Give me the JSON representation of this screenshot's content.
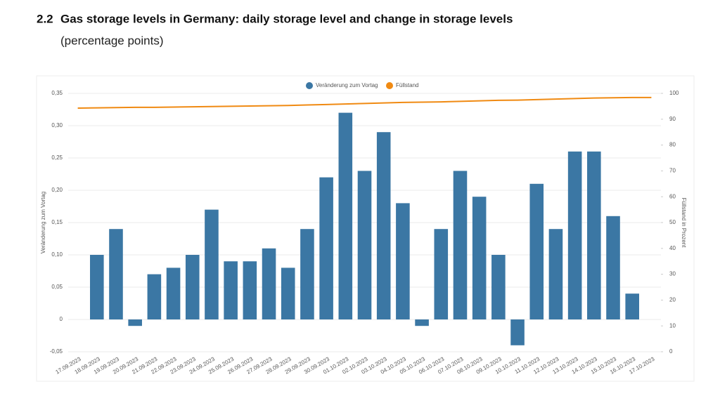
{
  "chart_data": {
    "type": "bar",
    "section": "2.2",
    "title": "Gas storage levels in Germany: daily storage level and change in storage levels",
    "subtitle": "(percentage points)",
    "ylabel": "Veränderung zum Vortag",
    "y2label": "Füllstand in Prozent",
    "categories": [
      "17.09.2023",
      "18.09.2023",
      "19.09.2023",
      "20.09.2023",
      "21.09.2023",
      "22.09.2023",
      "23.09.2023",
      "24.09.2023",
      "25.09.2023",
      "26.09.2023",
      "27.09.2023",
      "28.09.2023",
      "29.09.2023",
      "30.09.2023",
      "01.10.2023",
      "02.10.2023",
      "03.10.2023",
      "04.10.2023",
      "05.10.2023",
      "06.10.2023",
      "07.10.2023",
      "08.10.2023",
      "09.10.2023",
      "10.10.2023",
      "11.10.2023",
      "12.10.2023",
      "13.10.2023",
      "14.10.2023",
      "15.10.2023",
      "16.10.2023",
      "17.10.2023"
    ],
    "series": [
      {
        "name": "Veränderung zum Vortag",
        "type": "bar",
        "color": "#3b77a4",
        "values": [
          null,
          0.1,
          0.14,
          -0.01,
          0.07,
          0.08,
          0.1,
          0.17,
          0.09,
          0.09,
          0.11,
          0.08,
          0.14,
          0.22,
          0.32,
          0.23,
          0.29,
          0.18,
          -0.01,
          0.14,
          0.23,
          0.19,
          0.1,
          -0.04,
          0.21,
          0.14,
          0.26,
          0.26,
          0.16,
          0.04,
          null
        ]
      },
      {
        "name": "Füllstand",
        "type": "line",
        "axis": "y2",
        "color": "#f08a12",
        "values": [
          94.3,
          94.4,
          94.5,
          94.6,
          94.6,
          94.7,
          94.8,
          94.9,
          95.0,
          95.1,
          95.2,
          95.3,
          95.5,
          95.7,
          95.9,
          96.1,
          96.3,
          96.5,
          96.6,
          96.7,
          96.9,
          97.1,
          97.3,
          97.4,
          97.6,
          97.8,
          98.0,
          98.2,
          98.3,
          98.4,
          98.4
        ]
      }
    ],
    "ylim": [
      -0.05,
      0.35
    ],
    "yticks": [
      {
        "value": -0.05,
        "label": "-0,05"
      },
      0,
      {
        "value": 0.05,
        "label": "0,05"
      },
      {
        "value": 0.1,
        "label": "0,10"
      },
      {
        "value": 0.15,
        "label": "0,15"
      },
      {
        "value": 0.2,
        "label": "0,20"
      },
      {
        "value": 0.25,
        "label": "0,25"
      },
      {
        "value": 0.3,
        "label": "0,30"
      },
      {
        "value": 0.35,
        "label": "0,35"
      }
    ],
    "y2lim": [
      0,
      100
    ],
    "y2ticks": [
      0,
      10,
      20,
      30,
      40,
      50,
      60,
      70,
      80,
      90,
      100
    ],
    "grid": true,
    "legend": "top"
  }
}
